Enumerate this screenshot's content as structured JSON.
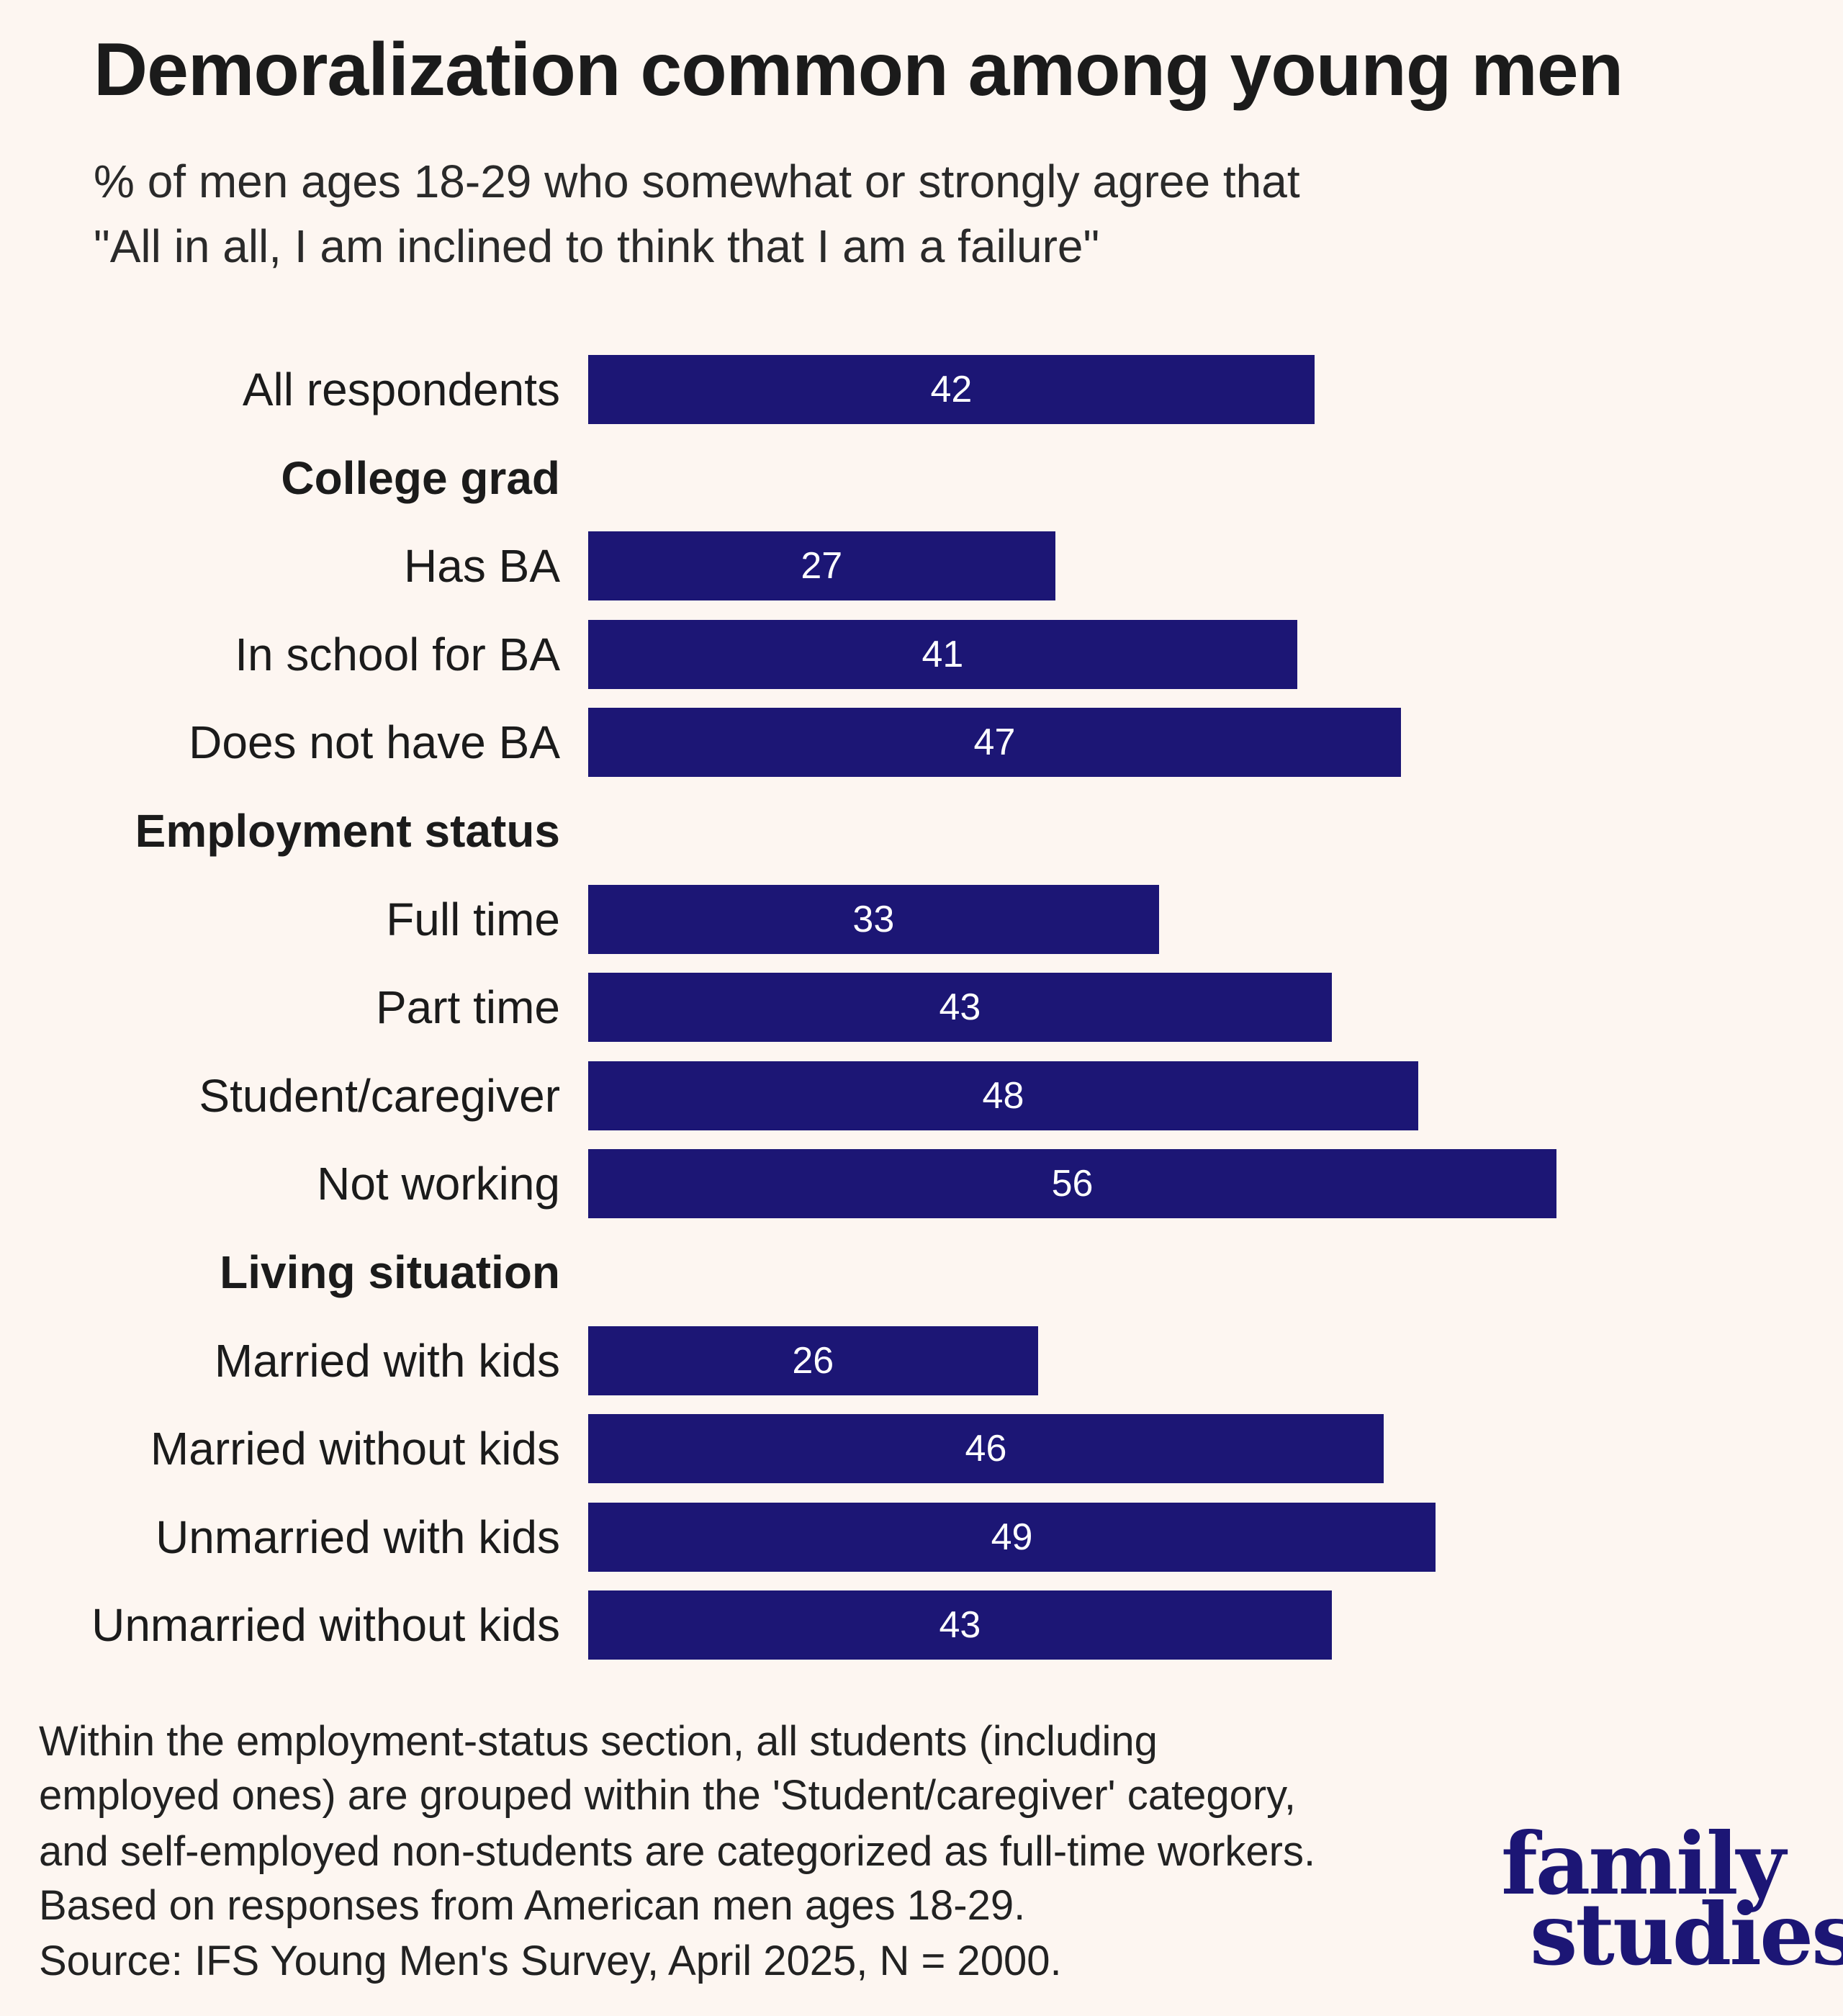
{
  "colors": {
    "bar": "#1c1675",
    "background": "#fdf6f1",
    "label_text": "#ffffff"
  },
  "header": {
    "title": "Demoralization common among young men",
    "subtitle_lines": [
      "% of men ages 18-29 who somewhat or strongly agree that",
      "\"All in all, I am inclined to think that I am a failure\""
    ]
  },
  "chart_data": {
    "type": "bar",
    "orientation": "horizontal",
    "title": "Demoralization common among young men",
    "subtitle": "% of men ages 18-29 who somewhat or strongly agree that \"All in all, I am inclined to think that I am a failure\"",
    "xlim": [
      0,
      60
    ],
    "grid": false,
    "data_labels": true,
    "rows": [
      {
        "label": "All respondents",
        "value": 42
      },
      {
        "label": "College grad",
        "header": true
      },
      {
        "label": "Has BA",
        "value": 27
      },
      {
        "label": "In school for BA",
        "value": 41
      },
      {
        "label": "Does not have BA",
        "value": 47
      },
      {
        "label": "Employment status",
        "header": true
      },
      {
        "label": "Full time",
        "value": 33
      },
      {
        "label": "Part time",
        "value": 43
      },
      {
        "label": "Student/caregiver",
        "value": 48
      },
      {
        "label": "Not working",
        "value": 56
      },
      {
        "label": "Living situation",
        "header": true
      },
      {
        "label": "Married with kids",
        "value": 26
      },
      {
        "label": "Married without kids",
        "value": 46
      },
      {
        "label": "Unmarried with kids",
        "value": 49
      },
      {
        "label": "Unmarried without kids",
        "value": 43
      }
    ]
  },
  "footnote": [
    "Within the employment-status section, all students (including",
    "employed ones) are grouped within the 'Student/caregiver' category,",
    "and self-employed non-students are categorized as full-time workers.",
    "Based on responses from American men ages 18-29.",
    "Source: IFS Young Men's Survey, April 2025, N = 2000."
  ],
  "logo": {
    "lines": [
      "family",
      "studies"
    ]
  }
}
